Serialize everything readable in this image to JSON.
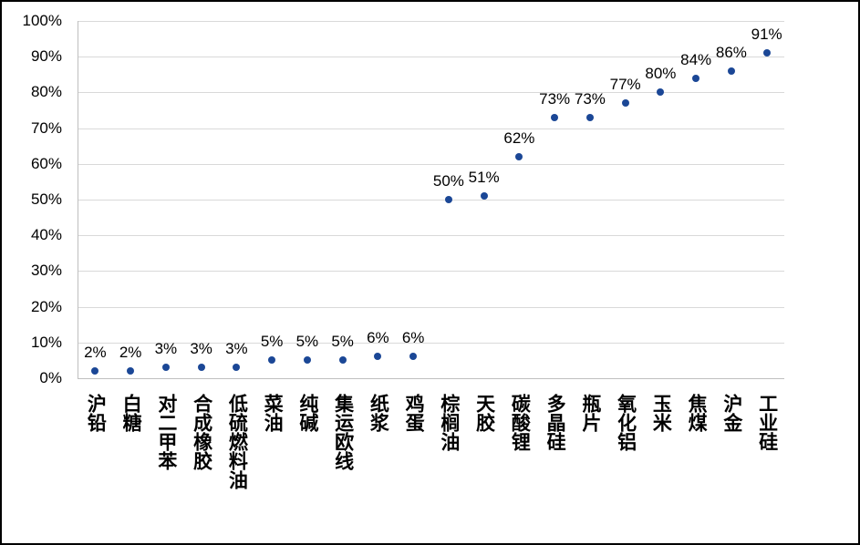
{
  "chart_data": {
    "type": "scatter",
    "title": "",
    "xlabel": "",
    "ylabel": "",
    "categories": [
      "沪铅",
      "白糖",
      "对二甲苯",
      "合成橡胶",
      "低硫燃料油",
      "菜油",
      "纯碱",
      "集运欧线",
      "纸浆",
      "鸡蛋",
      "棕榈油",
      "天胶",
      "碳酸锂",
      "多晶硅",
      "瓶片",
      "氧化铝",
      "玉米",
      "焦煤",
      "沪金",
      "工业硅"
    ],
    "values": [
      2,
      2,
      3,
      3,
      3,
      5,
      5,
      5,
      6,
      6,
      50,
      51,
      62,
      73,
      73,
      77,
      80,
      84,
      86,
      91
    ],
    "point_labels": [
      "2%",
      "2%",
      "3%",
      "3%",
      "3%",
      "5%",
      "5%",
      "5%",
      "6%",
      "6%",
      "50%",
      "51%",
      "62%",
      "73%",
      "73%",
      "77%",
      "80%",
      "84%",
      "86%",
      "91%"
    ],
    "ylim": [
      0,
      100
    ],
    "y_tick_step": 10,
    "y_tick_labels": [
      "0%",
      "10%",
      "20%",
      "30%",
      "40%",
      "50%",
      "60%",
      "70%",
      "80%",
      "90%",
      "100%"
    ],
    "grid": true,
    "legend": false,
    "marker": "circle",
    "colors": {
      "point": "#1B4796",
      "gridline": "#D9D9D9",
      "axis_line": "#BFBFBF",
      "text": "#000000",
      "background": "#FFFFFF",
      "frame_border": "#000000"
    }
  }
}
